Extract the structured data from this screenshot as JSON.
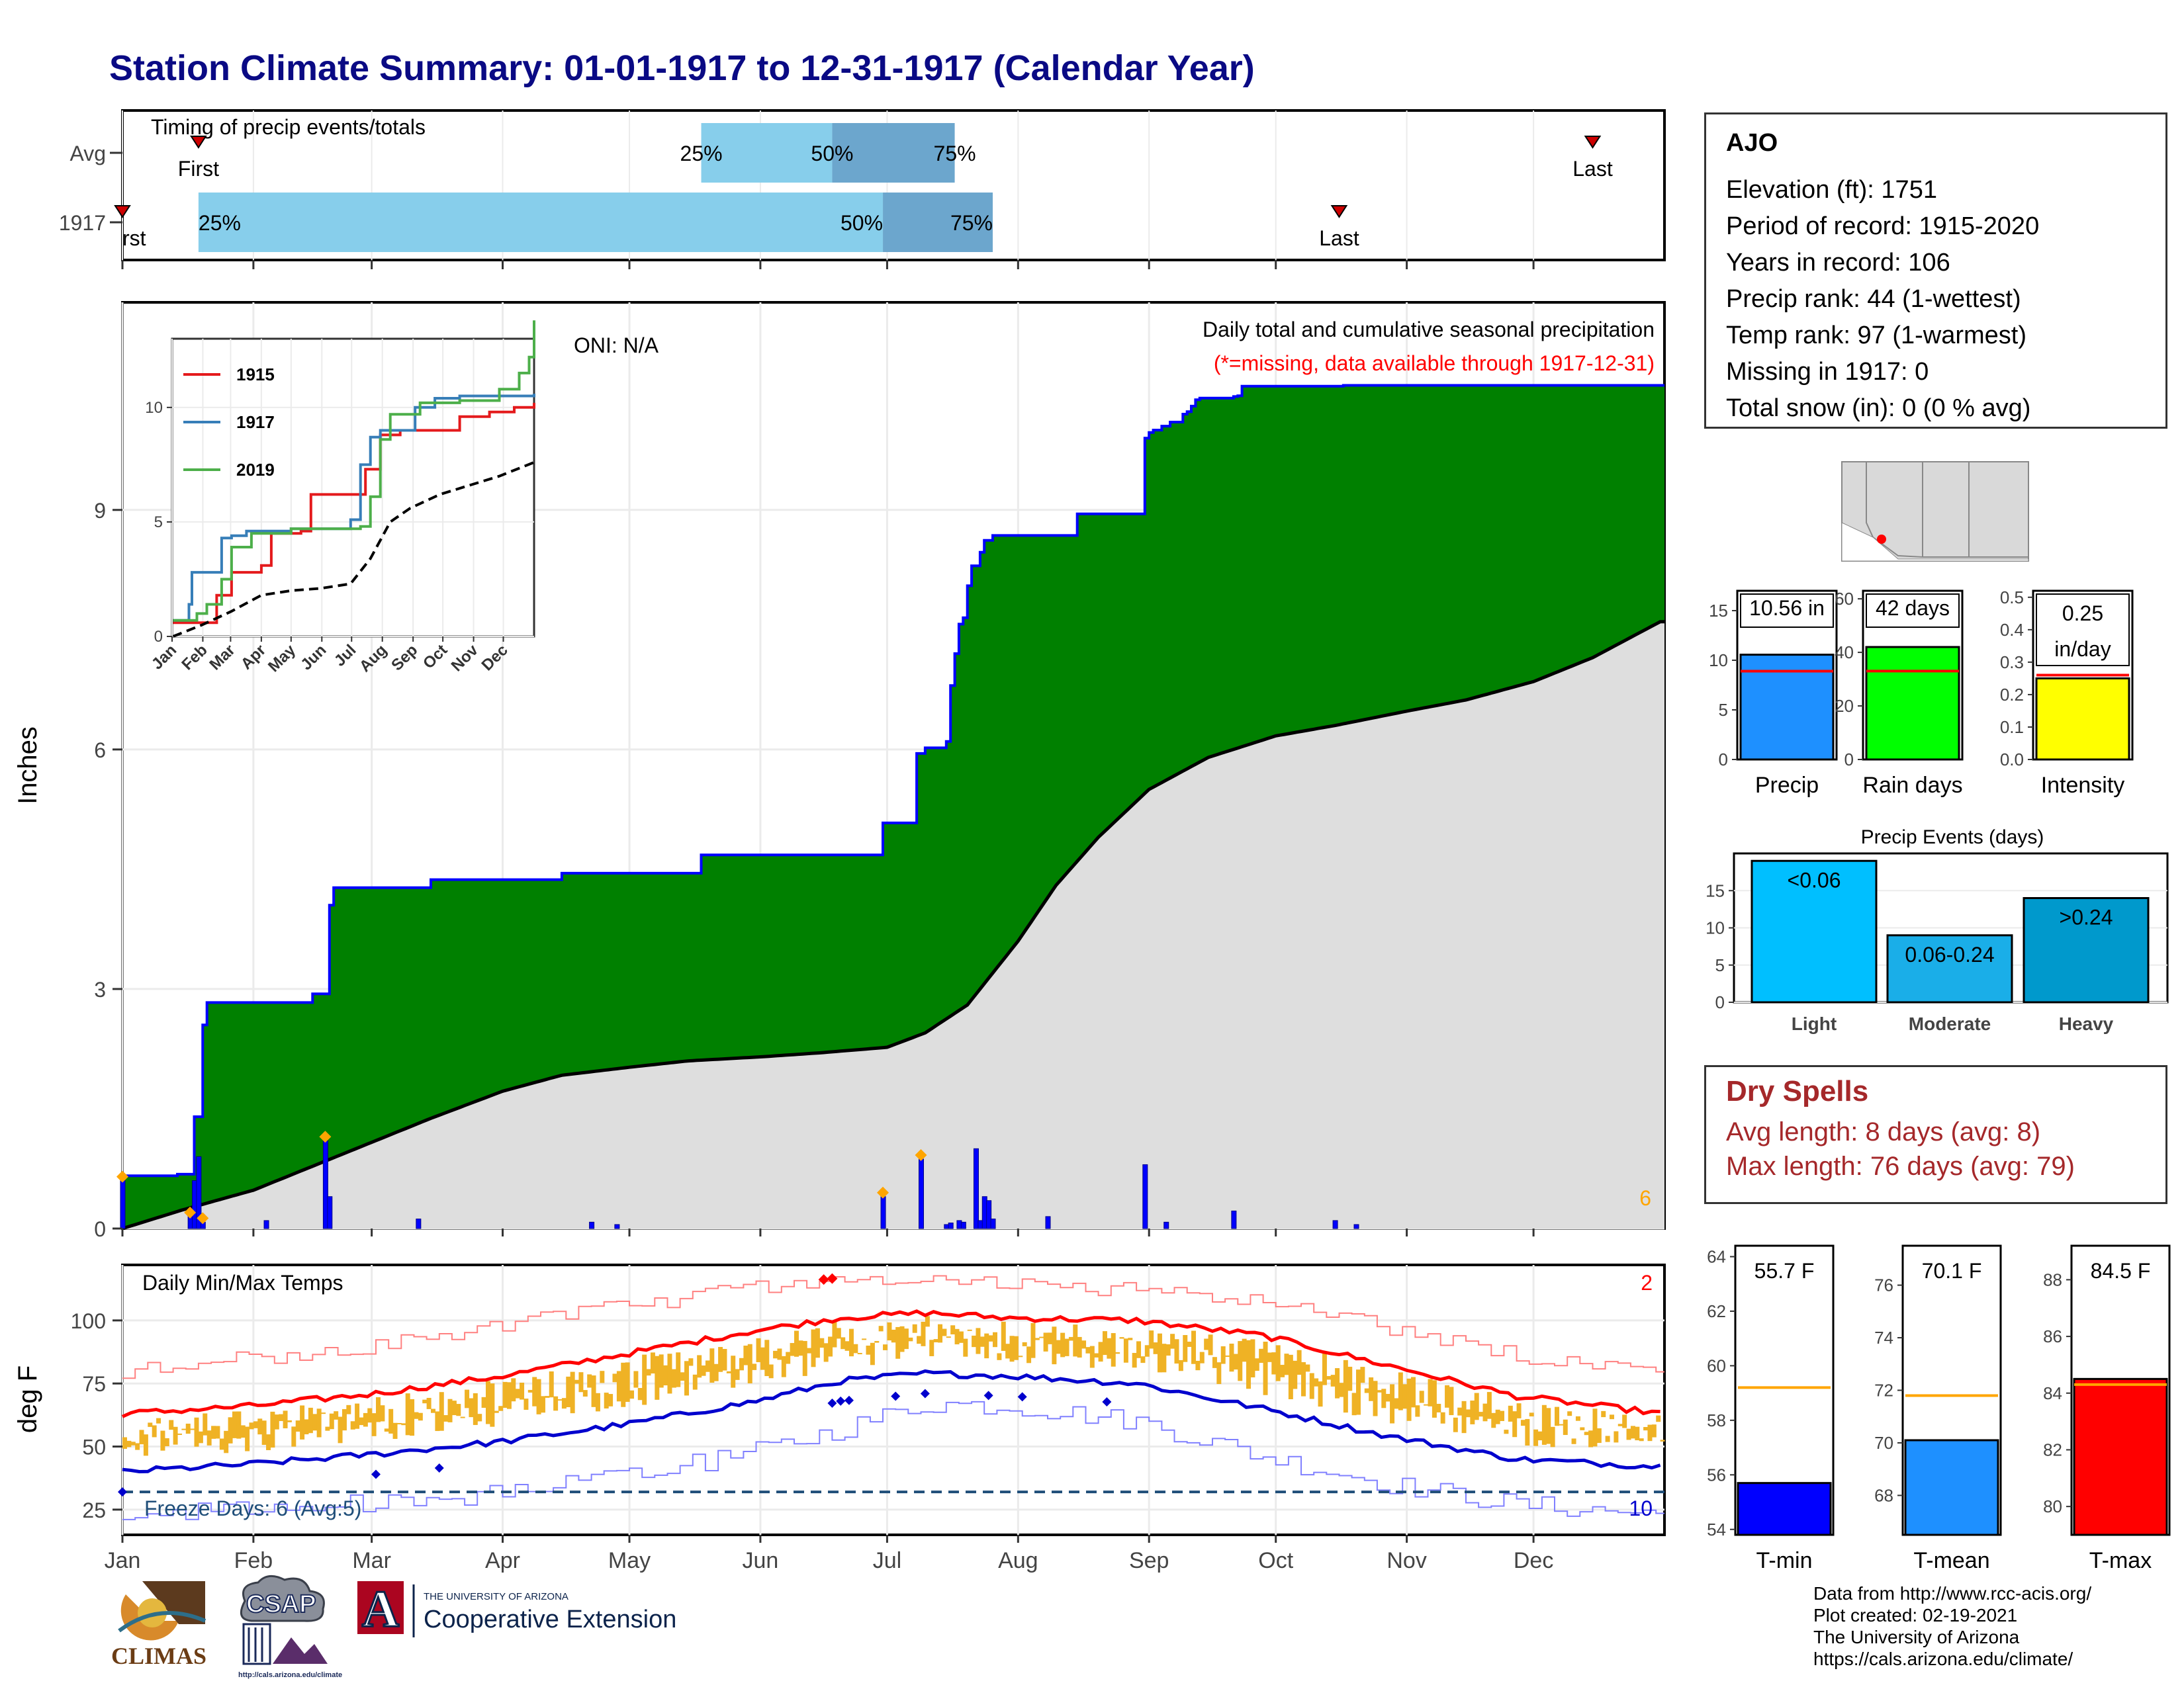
{
  "title": "Station Climate Summary: 01-01-1917 to 12-31-1917 (Calendar Year)",
  "timing": {
    "label": "Timing of precip events/totals",
    "rows": [
      {
        "name": "Avg",
        "first": "01-19",
        "p25": "05-18",
        "p50": "06-18",
        "p75": "07-17",
        "last": "12-15"
      },
      {
        "name": "1917",
        "first": "01-01",
        "p25": "01-19",
        "p50": "06-30",
        "p75": "07-26",
        "last": "10-16"
      }
    ],
    "marker_labels": {
      "first": "First",
      "first_cut": "rst",
      "last": "Last",
      "p25": "25%",
      "p50": "50%",
      "p75": "75%"
    },
    "colors": {
      "light": "#87ceeb",
      "dark": "#6ca6cd",
      "marker": "#cc0000"
    }
  },
  "chart_data": [
    {
      "type": "area",
      "title": "Daily total and cumulative seasonal precipitation",
      "subtitle": "(*=missing, data available through 1917-12-31)",
      "ylabel": "Inches",
      "ylim": [
        0,
        11.6
      ],
      "yticks": [
        0,
        3,
        6,
        9
      ],
      "grid": true,
      "oni": "ONI: N/A",
      "corner_count": "6",
      "months": [
        "Jan",
        "Feb",
        "Mar",
        "Apr",
        "May",
        "Jun",
        "Jul",
        "Aug",
        "Sep",
        "Oct",
        "Nov",
        "Dec"
      ],
      "series": [
        {
          "name": "1917 cumulative",
          "x": [
            "01-01",
            "01-05",
            "01-14",
            "01-18",
            "01-20",
            "01-21",
            "02-15",
            "02-19",
            "02-20",
            "03-15",
            "04-15",
            "05-18",
            "06-22",
            "06-30",
            "07-08",
            "07-09",
            "07-10",
            "07-15",
            "07-16",
            "07-17",
            "07-18",
            "07-19",
            "07-20",
            "07-21",
            "07-23",
            "07-24",
            "07-26",
            "08-15",
            "08-31",
            "09-01",
            "09-02",
            "09-03",
            "09-04",
            "09-05",
            "09-06",
            "09-07",
            "09-08",
            "09-09",
            "09-10",
            "09-11",
            "09-12",
            "09-13",
            "09-14",
            "09-15",
            "09-21",
            "09-22",
            "09-23",
            "09-24",
            "10-16",
            "10-17",
            "10-18",
            "12-31"
          ],
          "y": [
            0.66,
            0.66,
            0.68,
            1.4,
            2.55,
            2.83,
            2.94,
            4.05,
            4.27,
            4.37,
            4.45,
            4.68,
            4.68,
            5.08,
            5.95,
            5.95,
            6.02,
            6.1,
            6.8,
            7.2,
            7.57,
            7.65,
            8.05,
            8.3,
            8.47,
            8.62,
            8.68,
            8.95,
            9.9,
            9.97,
            10.0,
            10.0,
            10.05,
            10.05,
            10.1,
            10.1,
            10.1,
            10.2,
            10.23,
            10.3,
            10.38,
            10.4,
            10.4,
            10.4,
            10.42,
            10.43,
            10.55,
            10.55,
            10.55,
            10.56,
            10.56,
            10.56
          ],
          "color": "#0000ff",
          "fill": "#008000"
        },
        {
          "name": "Average cumulative",
          "x": [
            "01-01",
            "01-15",
            "02-01",
            "02-15",
            "03-01",
            "03-15",
            "04-01",
            "04-15",
            "05-01",
            "05-15",
            "06-01",
            "06-15",
            "07-01",
            "07-10",
            "07-20",
            "08-01",
            "08-10",
            "08-20",
            "09-01",
            "09-15",
            "10-01",
            "10-15",
            "11-01",
            "11-15",
            "12-01",
            "12-15",
            "12-31"
          ],
          "y": [
            0.0,
            0.23,
            0.48,
            0.78,
            1.08,
            1.38,
            1.72,
            1.92,
            2.02,
            2.1,
            2.15,
            2.2,
            2.27,
            2.45,
            2.8,
            3.6,
            4.3,
            4.9,
            5.5,
            5.9,
            6.17,
            6.3,
            6.48,
            6.62,
            6.85,
            7.15,
            7.6
          ],
          "color": "#000000",
          "fill": "#dedede"
        }
      ],
      "daily_precip": {
        "x": [
          "01-01",
          "01-17",
          "01-18",
          "01-19",
          "01-20",
          "02-04",
          "02-18",
          "02-19",
          "03-12",
          "04-22",
          "04-28",
          "06-30",
          "07-09",
          "07-15",
          "07-16",
          "07-18",
          "07-19",
          "07-22",
          "07-23",
          "07-24",
          "07-25",
          "07-26",
          "08-08",
          "08-31",
          "09-05",
          "09-21",
          "10-15",
          "10-20"
        ],
        "y": [
          0.6,
          0.15,
          0.6,
          0.9,
          0.08,
          0.1,
          1.1,
          0.4,
          0.12,
          0.08,
          0.05,
          0.4,
          0.87,
          0.05,
          0.07,
          0.1,
          0.08,
          1.0,
          0.1,
          0.4,
          0.35,
          0.12,
          0.15,
          0.8,
          0.08,
          0.22,
          0.1,
          0.05
        ],
        "marked_x": [
          "01-01",
          "01-17",
          "01-20",
          "02-18",
          "06-30",
          "07-09"
        ],
        "color": "#0000ff",
        "marker_color": "#ffa500"
      },
      "inset": {
        "type": "line",
        "xlabels": [
          "Jan",
          "Feb",
          "Mar",
          "Apr",
          "May",
          "Jun",
          "Jul",
          "Aug",
          "Sep",
          "Oct",
          "Nov",
          "Dec"
        ],
        "yticks": [
          0,
          5,
          10
        ],
        "ylim": [
          0,
          13
        ],
        "series": [
          {
            "name": "1915",
            "color": "#e41a1c",
            "x": [
              1,
              45,
              60,
              90,
              100,
              130,
              140,
              185,
              195,
              210,
              230,
              260,
              290,
              320,
              345,
              365
            ],
            "y": [
              0.6,
              1.8,
              2.8,
              3.1,
              4.5,
              4.6,
              6.2,
              6.2,
              7.3,
              8.8,
              9.0,
              9.0,
              9.6,
              9.8,
              10.0,
              10.2
            ]
          },
          {
            "name": "1917",
            "color": "#377eb8",
            "x": [
              1,
              17,
              20,
              50,
              60,
              75,
              120,
              160,
              180,
              190,
              200,
              210,
              245,
              265,
              290,
              365
            ],
            "y": [
              0.7,
              1.4,
              2.8,
              4.3,
              4.4,
              4.6,
              4.7,
              4.7,
              5.1,
              7.5,
              8.7,
              9.0,
              10.0,
              10.4,
              10.5,
              10.6
            ]
          },
          {
            "name": "2019",
            "color": "#4daf4a",
            "x": [
              1,
              25,
              35,
              50,
              60,
              80,
              120,
              160,
              190,
              200,
              210,
              220,
              250,
              290,
              330,
              350,
              360,
              365
            ],
            "y": [
              0.7,
              1.0,
              1.4,
              2.5,
              3.9,
              4.5,
              4.7,
              4.7,
              4.8,
              6.1,
              8.6,
              9.7,
              10.2,
              10.3,
              10.8,
              11.5,
              12.2,
              13.8
            ]
          },
          {
            "name": "avg",
            "color": "#000000",
            "dashed": true,
            "x": [
              1,
              30,
              60,
              90,
              120,
              150,
              180,
              200,
              220,
              240,
              270,
              300,
              330,
              365
            ],
            "y": [
              0.0,
              0.5,
              1.1,
              1.8,
              2.0,
              2.1,
              2.3,
              3.4,
              5.0,
              5.6,
              6.2,
              6.6,
              7.0,
              7.6
            ]
          }
        ],
        "legend": [
          "1915",
          "1917",
          "2019"
        ]
      }
    },
    {
      "type": "line",
      "title": "Daily Min/Max Temps",
      "ylabel": "deg F",
      "ylim": [
        15,
        122
      ],
      "yticks": [
        25,
        50,
        75,
        100
      ],
      "months": [
        "Jan",
        "Feb",
        "Mar",
        "Apr",
        "May",
        "Jun",
        "Jul",
        "Aug",
        "Sep",
        "Oct",
        "Nov",
        "Dec"
      ],
      "freeze_line": 32,
      "freeze_label": "Freeze Days: 6 (Avg:5)",
      "corner_hot": "2",
      "corner_cold": "10",
      "avg_max": {
        "x": [
          0,
          30,
          60,
          90,
          120,
          150,
          170,
          190,
          210,
          240,
          270,
          300,
          330,
          365
        ],
        "y": [
          63,
          66,
          71,
          78,
          87,
          96,
          101,
          103,
          101,
          100,
          94,
          82,
          70,
          63
        ],
        "color": "#ff0000"
      },
      "avg_min": {
        "x": [
          0,
          30,
          60,
          90,
          120,
          150,
          170,
          190,
          210,
          240,
          270,
          300,
          330,
          365
        ],
        "y": [
          40,
          43,
          47,
          52,
          59,
          68,
          76,
          79,
          78,
          75,
          65,
          54,
          45,
          42
        ],
        "color": "#0000cd"
      },
      "record_max": {
        "x": [
          0,
          30,
          60,
          90,
          120,
          150,
          170,
          190,
          210,
          240,
          270,
          300,
          330,
          365
        ],
        "y": [
          80,
          85,
          90,
          98,
          106,
          113,
          117,
          116,
          114,
          112,
          107,
          97,
          86,
          80
        ],
        "color": "#ff8080"
      },
      "record_min": {
        "x": [
          0,
          30,
          60,
          90,
          120,
          150,
          170,
          190,
          210,
          240,
          270,
          300,
          330,
          365
        ],
        "y": [
          22,
          25,
          28,
          32,
          38,
          48,
          57,
          67,
          66,
          60,
          46,
          35,
          27,
          23
        ],
        "color": "#8080ff"
      },
      "band_color": "#efb225",
      "hot_record_x": [
        166,
        168
      ],
      "cold_record_x": [
        0,
        60,
        75,
        168,
        170,
        172,
        183,
        190,
        205,
        213,
        233
      ]
    }
  ],
  "summary": {
    "name": "AJO",
    "lines": [
      "Elevation (ft): 1751",
      "Period of record: 1915-2020",
      "Years in record: 106",
      "Precip rank: 44 (1-wettest)",
      "Temp rank: 97 (1-warmest)",
      "Missing in 1917: 0",
      "Total snow (in): 0 (0 % avg)"
    ]
  },
  "map_marker_color": "#ff0000",
  "bars_top": [
    {
      "name": "Precip",
      "value": 10.56,
      "label": "10.56 in",
      "avg": 8.9,
      "ylim": [
        0,
        17
      ],
      "yticks": [
        0,
        5,
        10,
        15
      ],
      "color": "#1e90ff"
    },
    {
      "name": "Rain days",
      "value": 42,
      "label": "42 days",
      "avg": 33,
      "ylim": [
        0,
        63
      ],
      "yticks": [
        0,
        20,
        40,
        60
      ],
      "color": "#00ff00"
    },
    {
      "name": "Intensity",
      "value": 0.25,
      "label": "0.25 in/day",
      "label_a": "0.25",
      "label_b": "in/day",
      "avg": 0.26,
      "ylim": [
        0,
        0.52
      ],
      "yticks": [
        "0.0",
        "0.1",
        "0.2",
        "0.3",
        "0.4",
        "0.5"
      ],
      "color": "#ffff00"
    }
  ],
  "events": {
    "title": "Precip Events (days)",
    "ylim": [
      0,
      20
    ],
    "yticks": [
      0,
      5,
      10,
      15
    ],
    "bars": [
      {
        "name": "Light",
        "label": "<0.06",
        "value": 19,
        "color": "#00bfff"
      },
      {
        "name": "Moderate",
        "label": "0.06-0.24",
        "value": 9,
        "color": "#1aaee8"
      },
      {
        "name": "Heavy",
        "label": ">0.24",
        "value": 14,
        "color": "#0099cc"
      }
    ]
  },
  "dry_spells": {
    "title": "Dry Spells",
    "avg_line": "Avg length: 8 days (avg: 8)",
    "max_line": "Max length: 76 days (avg: 79)"
  },
  "temps": [
    {
      "name": "T-min",
      "label": "55.7 F",
      "value": 55.7,
      "avg": 59.2,
      "ylim": [
        53.8,
        64.4
      ],
      "yticks": [
        54,
        56,
        58,
        60,
        62,
        64
      ],
      "color": "#0000ff"
    },
    {
      "name": "T-mean",
      "label": "70.1 F",
      "value": 70.1,
      "avg": 71.8,
      "ylim": [
        66.5,
        77.5
      ],
      "yticks": [
        68,
        70,
        72,
        74,
        76
      ],
      "color": "#1e90ff"
    },
    {
      "name": "T-max",
      "label": "84.5 F",
      "value": 84.5,
      "avg": 84.3,
      "ylim": [
        79,
        89.2
      ],
      "yticks": [
        80,
        82,
        84,
        86,
        88
      ],
      "color": "#ff0000"
    }
  ],
  "credits": [
    "Data from http://www.rcc-acis.org/",
    "Plot created: 02-19-2021",
    "The University of Arizona",
    "https://cals.arizona.edu/climate/"
  ],
  "logos": {
    "climas": "CLIMAS",
    "csap": "CSAP",
    "csap_url": "http://cals.arizona.edu/climate",
    "ua_small": "THE UNIVERSITY OF ARIZONA",
    "ua_big": "Cooperative Extension",
    "ua_letter": "A"
  }
}
